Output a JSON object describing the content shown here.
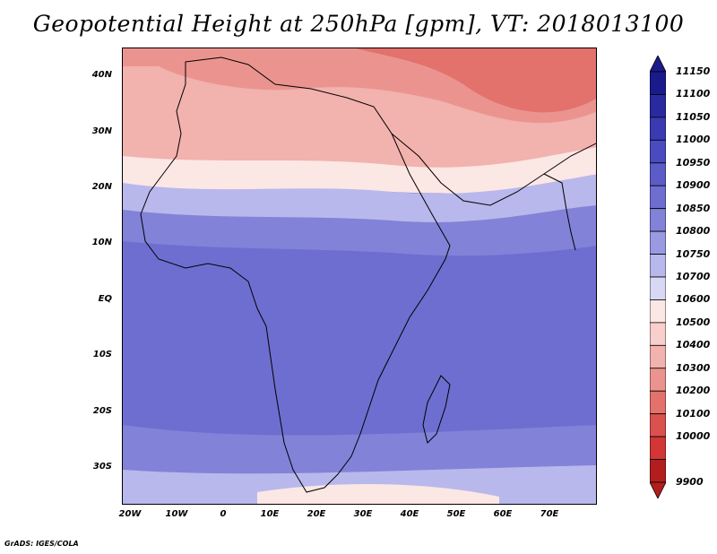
{
  "title": "Geopotential Height at 250hPa [gpm], VT: 2018013100",
  "credit": "GrADS: IGES/COLA",
  "lat_labels": [
    "40N",
    "30N",
    "20N",
    "10N",
    "EQ",
    "10S",
    "20S",
    "30S"
  ],
  "lat_values": [
    40,
    30,
    20,
    10,
    0,
    -10,
    -20,
    -30
  ],
  "lon_labels": [
    "20W",
    "10W",
    "0",
    "10E",
    "20E",
    "30E",
    "40E",
    "50E",
    "60E",
    "70E"
  ],
  "lon_values": [
    -20,
    -10,
    0,
    10,
    20,
    30,
    40,
    50,
    60,
    70
  ],
  "map_extent": {
    "lon_min": -23,
    "lon_max": 80,
    "lat_min": -37,
    "lat_max": 45
  },
  "colorbar": {
    "levels": [
      "11150",
      "11100",
      "11050",
      "11000",
      "10950",
      "10900",
      "10850",
      "10800",
      "10750",
      "10700",
      "10600",
      "10500",
      "10400",
      "10300",
      "10200",
      "10100",
      "10000",
      "9900"
    ],
    "colors": [
      "#1a1a8c",
      "#2a2aa0",
      "#3a3ab2",
      "#4b4bc0",
      "#5c5cc8",
      "#6e6ed0",
      "#8282d8",
      "#9a9ae2",
      "#b8b8ec",
      "#d8d8f4",
      "#fbe7e4",
      "#f8cfcb",
      "#f2b2ad",
      "#eb948f",
      "#e3716c",
      "#db514e",
      "#d23636",
      "#b21e1e"
    ],
    "top_arrow_color": "#1a1a8c",
    "bottom_arrow_color": "#b21e1e"
  }
}
